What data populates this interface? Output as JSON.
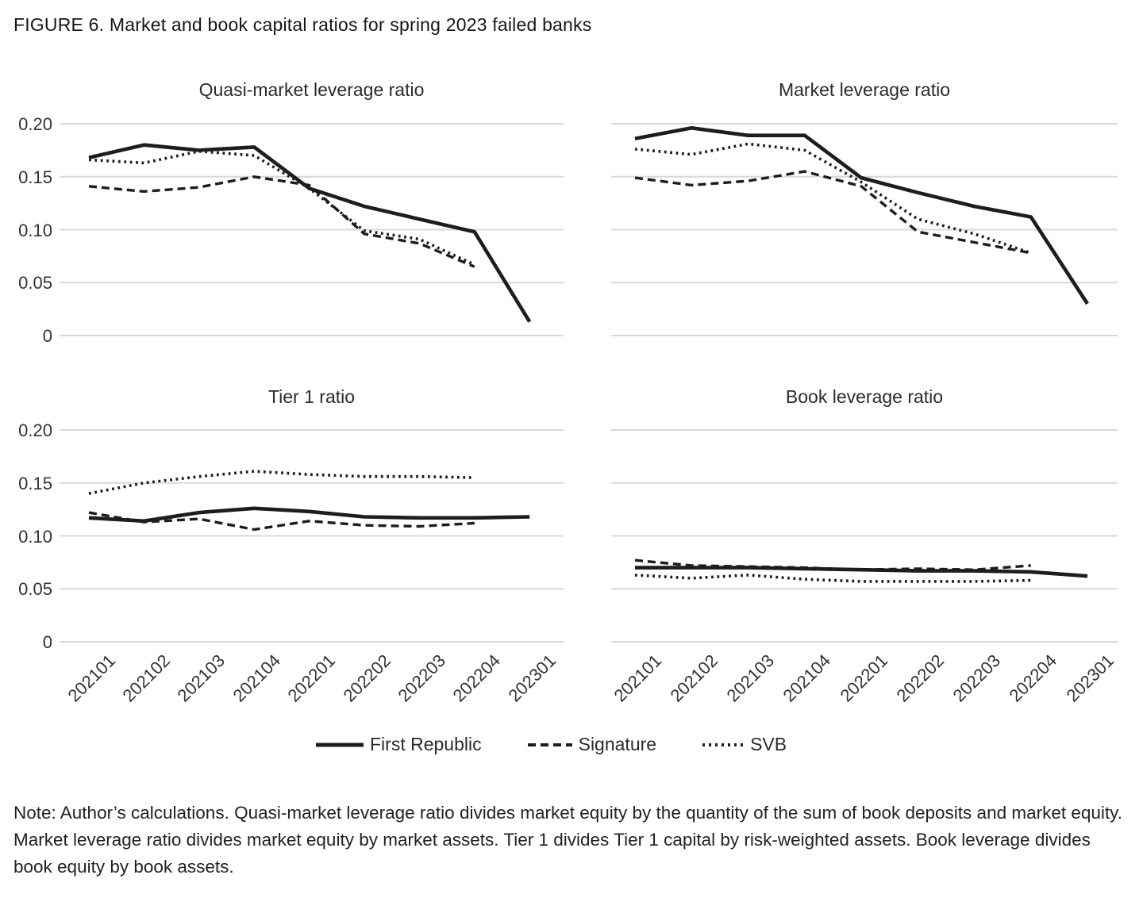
{
  "figure": {
    "title": "FIGURE 6. Market and book capital ratios for spring 2023 failed banks"
  },
  "colors": {
    "line": "#1d1d1d",
    "grid": "#d9d9d9",
    "text": "#333333"
  },
  "axes": {
    "categories": [
      "202101",
      "202102",
      "202103",
      "202104",
      "202201",
      "202202",
      "202203",
      "202204",
      "202301"
    ],
    "ymax": 0.2,
    "ytick_values": [
      0.2,
      0.15,
      0.1,
      0.05,
      0
    ],
    "ytick_labels": [
      "0.20",
      "0.15",
      "0.10",
      "0.05",
      "0"
    ]
  },
  "legend": [
    {
      "name": "First Republic",
      "style": "solid"
    },
    {
      "name": "Signature",
      "style": "dashed"
    },
    {
      "name": "SVB",
      "style": "dotted"
    }
  ],
  "chart_data": [
    {
      "type": "line",
      "title": "Quasi-market leverage ratio",
      "x": [
        "202101",
        "202102",
        "202103",
        "202104",
        "202201",
        "202202",
        "202203",
        "202204",
        "202301"
      ],
      "ylim": [
        0,
        0.2
      ],
      "grid": true,
      "legend_position": "bottom",
      "series": [
        {
          "name": "First Republic",
          "style": "solid",
          "values": [
            0.168,
            0.18,
            0.175,
            0.178,
            0.139,
            0.122,
            0.11,
            0.098,
            0.013
          ]
        },
        {
          "name": "Signature",
          "style": "dashed",
          "values": [
            0.141,
            0.136,
            0.14,
            0.15,
            0.142,
            0.096,
            0.087,
            0.065,
            null
          ]
        },
        {
          "name": "SVB",
          "style": "dotted",
          "values": [
            0.166,
            0.163,
            0.174,
            0.17,
            0.139,
            0.099,
            0.091,
            0.067,
            null
          ]
        }
      ]
    },
    {
      "type": "line",
      "title": "Market leverage ratio",
      "x": [
        "202101",
        "202102",
        "202103",
        "202104",
        "202201",
        "202202",
        "202203",
        "202204",
        "202301"
      ],
      "ylim": [
        0,
        0.2
      ],
      "grid": true,
      "legend_position": "bottom",
      "series": [
        {
          "name": "First Republic",
          "style": "solid",
          "values": [
            0.186,
            0.196,
            0.189,
            0.189,
            0.149,
            0.135,
            0.122,
            0.112,
            0.03
          ]
        },
        {
          "name": "Signature",
          "style": "dashed",
          "values": [
            0.149,
            0.142,
            0.146,
            0.155,
            0.141,
            0.098,
            0.088,
            0.078,
            null
          ]
        },
        {
          "name": "SVB",
          "style": "dotted",
          "values": [
            0.176,
            0.171,
            0.181,
            0.175,
            0.145,
            0.11,
            0.096,
            0.078,
            null
          ]
        }
      ]
    },
    {
      "type": "line",
      "title": "Tier 1 ratio",
      "x": [
        "202101",
        "202102",
        "202103",
        "202104",
        "202201",
        "202202",
        "202203",
        "202204",
        "202301"
      ],
      "ylim": [
        0,
        0.2
      ],
      "grid": true,
      "legend_position": "bottom",
      "series": [
        {
          "name": "First Republic",
          "style": "solid",
          "values": [
            0.117,
            0.114,
            0.122,
            0.126,
            0.123,
            0.118,
            0.117,
            0.117,
            0.118
          ]
        },
        {
          "name": "Signature",
          "style": "dashed",
          "values": [
            0.122,
            0.113,
            0.116,
            0.106,
            0.114,
            0.11,
            0.109,
            0.112,
            null
          ]
        },
        {
          "name": "SVB",
          "style": "dotted",
          "values": [
            0.14,
            0.15,
            0.156,
            0.161,
            0.158,
            0.156,
            0.156,
            0.155,
            null
          ]
        }
      ]
    },
    {
      "type": "line",
      "title": "Book leverage ratio",
      "x": [
        "202101",
        "202102",
        "202103",
        "202104",
        "202201",
        "202202",
        "202203",
        "202204",
        "202301"
      ],
      "ylim": [
        0,
        0.2
      ],
      "grid": true,
      "legend_position": "bottom",
      "series": [
        {
          "name": "First Republic",
          "style": "solid",
          "values": [
            0.07,
            0.07,
            0.07,
            0.069,
            0.068,
            0.067,
            0.067,
            0.066,
            0.062
          ]
        },
        {
          "name": "Signature",
          "style": "dashed",
          "values": [
            0.077,
            0.072,
            0.071,
            0.07,
            0.068,
            0.069,
            0.068,
            0.072,
            null
          ]
        },
        {
          "name": "SVB",
          "style": "dotted",
          "values": [
            0.063,
            0.06,
            0.063,
            0.059,
            0.057,
            0.057,
            0.057,
            0.058,
            null
          ]
        }
      ]
    }
  ],
  "note": "Note: Author’s calculations. Quasi-market leverage ratio divides market equity by the quantity of the sum of book deposits and market equity. Market leverage ratio divides market equity by market assets. Tier 1 divides Tier 1 capital by risk-weighted assets. Book leverage divides book equity by book assets."
}
